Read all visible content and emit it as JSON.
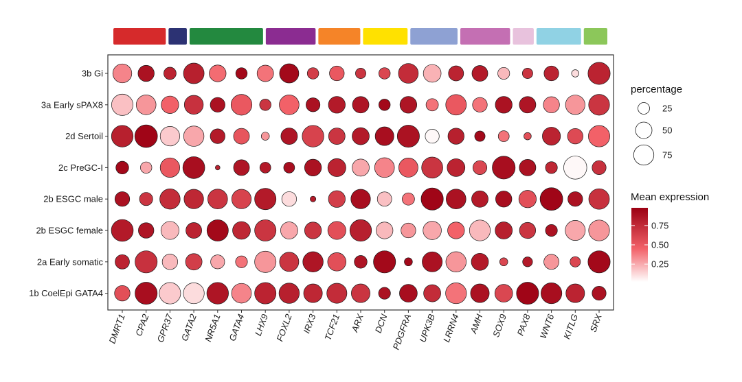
{
  "chart_data": {
    "type": "dotplot",
    "genes": [
      "DMRT1",
      "CPA2",
      "GPR37",
      "GATA2",
      "NR5A1",
      "GATA4",
      "LHX9",
      "FOXL2",
      "IRX3",
      "TCF21",
      "ARX",
      "DCN",
      "PDGFRA",
      "UPK3B",
      "LRRN4",
      "AMH",
      "SOX9",
      "PAX8",
      "WNT6",
      "KITLG",
      "SRX"
    ],
    "groups": [
      "3b Gi",
      "3a Early sPAX8",
      "2d Sertoil",
      "2c PreGC-I",
      "2b ESGC male",
      "2b ESGC female",
      "2a Early somatic",
      "1b CoelEpi GATA4"
    ],
    "percentage": [
      [
        66,
        48,
        28,
        78,
        52,
        24,
        50,
        68,
        24,
        40,
        20,
        24,
        72,
        58,
        42,
        46,
        26,
        20,
        40,
        10,
        90
      ],
      [
        84,
        72,
        56,
        66,
        40,
        80,
        24,
        72,
        36,
        52,
        50,
        24,
        52,
        28,
        78,
        40,
        52,
        50,
        48,
        70,
        80
      ],
      [
        86,
        94,
        70,
        76,
        40,
        46,
        12,
        50,
        86,
        50,
        54,
        64,
        90,
        36,
        48,
        20,
        22,
        10,
        60,
        44,
        84
      ],
      [
        30,
        24,
        70,
        88,
        4,
        46,
        22,
        22,
        52,
        60,
        54,
        72,
        68,
        82,
        58,
        36,
        96,
        50,
        26,
        98,
        36
      ],
      [
        40,
        32,
        76,
        70,
        72,
        70,
        84,
        40,
        6,
        52,
        70,
        38,
        28,
        90,
        72,
        50,
        48,
        56,
        94,
        40,
        78
      ],
      [
        88,
        44,
        60,
        46,
        84,
        58,
        84,
        54,
        52,
        60,
        86,
        52,
        40,
        62,
        52,
        80,
        54,
        48,
        26,
        74,
        80
      ],
      [
        38,
        90,
        44,
        50,
        36,
        26,
        84,
        68,
        76,
        62,
        30,
        90,
        12,
        74,
        76,
        54,
        12,
        18,
        42,
        20,
        90
      ],
      [
        44,
        90,
        84,
        80,
        86,
        72,
        84,
        76,
        64,
        74,
        64,
        26,
        58,
        54,
        80,
        64,
        58,
        90,
        80,
        64,
        36
      ]
    ],
    "expression": [
      [
        0.35,
        0.9,
        0.8,
        0.82,
        0.42,
        0.95,
        0.4,
        0.95,
        0.65,
        0.5,
        0.7,
        0.6,
        0.75,
        0.22,
        0.8,
        0.85,
        0.2,
        0.7,
        0.8,
        0.1,
        0.8
      ],
      [
        0.18,
        0.3,
        0.45,
        0.72,
        0.9,
        0.5,
        0.7,
        0.45,
        0.9,
        0.85,
        0.88,
        0.95,
        0.88,
        0.4,
        0.5,
        0.4,
        0.9,
        0.88,
        0.35,
        0.3,
        0.7
      ],
      [
        0.82,
        0.97,
        0.15,
        0.25,
        0.85,
        0.52,
        0.3,
        0.88,
        0.62,
        0.7,
        0.85,
        0.92,
        0.9,
        0.02,
        0.82,
        0.95,
        0.4,
        0.55,
        0.8,
        0.58,
        0.45
      ],
      [
        0.95,
        0.25,
        0.5,
        0.92,
        0.8,
        0.88,
        0.85,
        0.92,
        0.9,
        0.8,
        0.25,
        0.35,
        0.5,
        0.7,
        0.8,
        0.6,
        0.92,
        0.9,
        0.78,
        0.02,
        0.72
      ],
      [
        0.9,
        0.7,
        0.75,
        0.78,
        0.7,
        0.62,
        0.85,
        0.1,
        0.85,
        0.65,
        0.92,
        0.18,
        0.4,
        0.97,
        0.9,
        0.85,
        0.92,
        0.55,
        0.97,
        0.9,
        0.72
      ],
      [
        0.85,
        0.88,
        0.2,
        0.8,
        0.95,
        0.78,
        0.7,
        0.25,
        0.7,
        0.55,
        0.82,
        0.2,
        0.3,
        0.25,
        0.45,
        0.2,
        0.82,
        0.7,
        0.9,
        0.25,
        0.3
      ],
      [
        0.8,
        0.72,
        0.2,
        0.65,
        0.25,
        0.4,
        0.3,
        0.7,
        0.88,
        0.55,
        0.88,
        0.95,
        0.95,
        0.9,
        0.3,
        0.85,
        0.6,
        0.85,
        0.3,
        0.6,
        0.95
      ],
      [
        0.55,
        0.92,
        0.15,
        0.1,
        0.88,
        0.35,
        0.8,
        0.82,
        0.78,
        0.75,
        0.7,
        0.9,
        0.92,
        0.75,
        0.4,
        0.9,
        0.6,
        0.97,
        0.92,
        0.8,
        0.9
      ]
    ],
    "annotation_bar": [
      {
        "color": "#d62a2b",
        "span": [
          0,
          1
        ]
      },
      {
        "color": "#2c3273",
        "span": [
          2,
          2
        ]
      },
      {
        "color": "#23893f",
        "span": [
          3,
          4
        ]
      },
      {
        "color": "#8b2c91",
        "span": [
          5,
          6
        ]
      },
      {
        "color": "#f58428",
        "span": [
          7,
          7
        ]
      },
      {
        "color": "#ffe100",
        "span": [
          8,
          8
        ]
      },
      {
        "color": "#8ea1d3",
        "span": [
          9,
          9
        ]
      },
      {
        "color": "#c46fb3",
        "span": [
          10,
          10
        ]
      },
      {
        "color": "#e8c2dd",
        "span": [
          11,
          11
        ]
      },
      {
        "color": "#90d2e4",
        "span": [
          12,
          12
        ]
      },
      {
        "color": "#8cc75a",
        "span": [
          13,
          13
        ]
      }
    ],
    "size_legend": {
      "title": "percentage",
      "values": [
        "25",
        "50",
        "75"
      ],
      "levels": [
        25,
        50,
        75
      ]
    },
    "color_legend": {
      "title": "Mean expression",
      "ticks": [
        "0.75",
        "0.50",
        "0.25"
      ],
      "levels": [
        0.75,
        0.5,
        0.25
      ],
      "low_color": "#ffffff",
      "high_color": "#9b0012"
    }
  }
}
